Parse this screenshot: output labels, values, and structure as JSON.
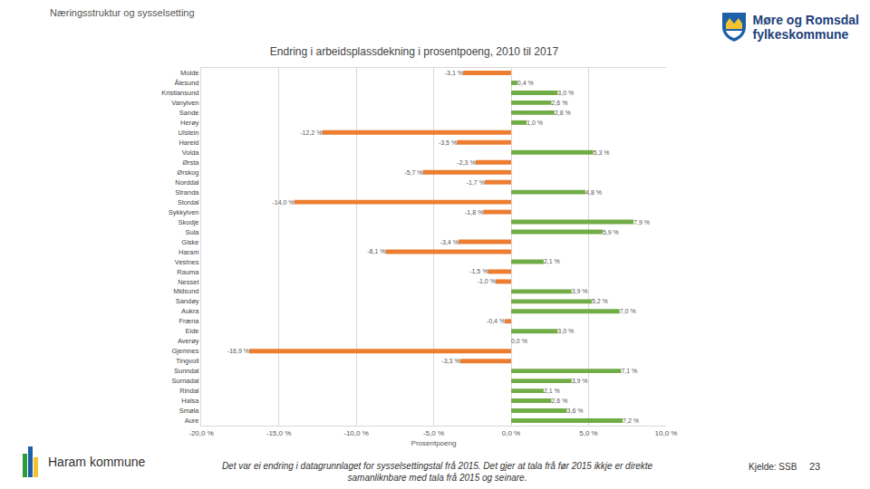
{
  "page": {
    "header": "Næringsstruktur og sysselsetting",
    "logo_text": [
      "Møre og Romsdal",
      "fylkeskommune"
    ],
    "municipality": "Haram kommune",
    "footnote": "Det var ei endring i datagrunnlaget for sysselsettingstal frå 2015. Det gjer at tala frå før 2015 ikkje er direkte samanliknbare med tala frå 2015 og seinare.",
    "source": "Kjelde: SSB",
    "page_number": "23"
  },
  "chart_data": {
    "type": "bar",
    "orientation": "horizontal",
    "title": "Endring i arbeidsplassdekning i prosentpoeng, 2010 til 2017",
    "x_label": "Prosentpoeng",
    "categories": [
      "Molde",
      "Ålesund",
      "Kristiansund",
      "Vanylven",
      "Sande",
      "Herøy",
      "Ulstein",
      "Hareid",
      "Volda",
      "Ørsta",
      "Ørskog",
      "Norddal",
      "Stranda",
      "Stordal",
      "Sykkylven",
      "Skodje",
      "Sula",
      "Giske",
      "Haram",
      "Vestnes",
      "Rauma",
      "Nesset",
      "Midsund",
      "Sandøy",
      "Aukra",
      "Fræna",
      "Eide",
      "Averøy",
      "Gjemnes",
      "Tingvoll",
      "Sunndal",
      "Surnadal",
      "Rindal",
      "Halsa",
      "Smøla",
      "Aure"
    ],
    "values": [
      -3.1,
      0.4,
      3.0,
      2.6,
      2.8,
      1.0,
      -12.2,
      -3.5,
      5.3,
      -2.3,
      -5.7,
      -1.7,
      4.8,
      -14.0,
      -1.8,
      7.9,
      5.9,
      -3.4,
      -8.1,
      2.1,
      -1.5,
      -1.0,
      3.9,
      5.2,
      7.0,
      -0.4,
      3.0,
      0.0,
      -16.9,
      -3.3,
      7.1,
      3.9,
      2.1,
      2.6,
      3.6,
      7.2
    ],
    "value_labels": [
      "-3,1 %",
      "0,4 %",
      "3,0 %",
      "2,6 %",
      "2,8 %",
      "1,0 %",
      "-12,2 %",
      "-3,5 %",
      "5,3 %",
      "-2,3 %",
      "-5,7 %",
      "-1,7 %",
      "4,8 %",
      "-14,0 %",
      "-1,8 %",
      "7,9 %",
      "5,9 %",
      "-3,4 %",
      "-8,1 %",
      "2,1 %",
      "-1,5 %",
      "-1,0 %",
      "3,9 %",
      "5,2 %",
      "7,0 %",
      "-0,4 %",
      "3,0 %",
      "0,0 %",
      "-16,9 %",
      "-3,3 %",
      "7,1 %",
      "3,9 %",
      "2,1 %",
      "2,6 %",
      "3,6 %",
      "7,2 %"
    ],
    "colors": [
      "#ed7d31",
      "#70ad47",
      "#70ad47",
      "#70ad47",
      "#70ad47",
      "#70ad47",
      "#ed7d31",
      "#ed7d31",
      "#70ad47",
      "#ed7d31",
      "#ed7d31",
      "#ed7d31",
      "#70ad47",
      "#ed7d31",
      "#ed7d31",
      "#70ad47",
      "#70ad47",
      "#ed7d31",
      "#ed7d31",
      "#70ad47",
      "#ed7d31",
      "#ed7d31",
      "#70ad47",
      "#70ad47",
      "#70ad47",
      "#ed7d31",
      "#70ad47",
      "#70ad47",
      "#ed7d31",
      "#ed7d31",
      "#70ad47",
      "#70ad47",
      "#70ad47",
      "#70ad47",
      "#70ad47",
      "#70ad47"
    ],
    "xlim": [
      -20,
      10
    ],
    "xticks": [
      {
        "value": -20,
        "label": "-20,0 %"
      },
      {
        "value": -15,
        "label": "-15,0 %"
      },
      {
        "value": -10,
        "label": "-10,0 %"
      },
      {
        "value": -5,
        "label": "-5,0 %"
      },
      {
        "value": 0,
        "label": "0,0 %"
      },
      {
        "value": 5,
        "label": "5,0 %"
      },
      {
        "value": 10,
        "label": "10,0 %"
      }
    ],
    "grid": true,
    "data_labels": true
  }
}
